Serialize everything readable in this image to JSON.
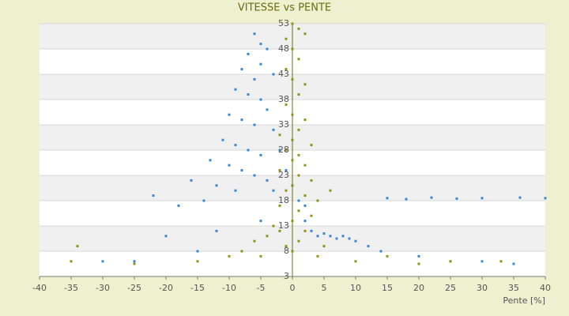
{
  "chart_data": {
    "type": "scatter",
    "title": "VITESSE vs PENTE",
    "x_label": "Pente [%]",
    "xlim": [
      -40,
      40
    ],
    "xticks": [
      -40,
      -35,
      -30,
      -25,
      -20,
      -15,
      -10,
      -5,
      0,
      5,
      10,
      15,
      20,
      25,
      30,
      35,
      40
    ],
    "ylim": [
      3,
      53
    ],
    "yticks": [
      3,
      8,
      13,
      18,
      23,
      28,
      33,
      38,
      43,
      48,
      53
    ],
    "grid": true,
    "series": [
      {
        "color": "#3a87d6",
        "x": [
          -6,
          -5,
          -7,
          -4,
          -5,
          -8,
          -6,
          -3,
          -9,
          -7,
          -5,
          -4,
          -10,
          -8,
          -6,
          -3,
          -11,
          -9,
          -7,
          -5,
          -2,
          -13,
          -10,
          -8,
          -6,
          -4,
          -1,
          -16,
          -12,
          -9,
          -3,
          0,
          -22,
          -18,
          -14,
          1,
          2,
          15,
          18,
          22,
          26,
          30,
          36,
          40,
          3,
          4,
          5,
          6,
          7,
          8,
          9,
          10,
          12,
          14,
          -20,
          -25,
          -30,
          -15,
          20,
          25,
          30,
          35,
          -12,
          -5,
          2
        ],
        "values": [
          51,
          49,
          47,
          48,
          45,
          44,
          42,
          43,
          40,
          39,
          38,
          36,
          35,
          34,
          33,
          32,
          30,
          29,
          28,
          27,
          28,
          26,
          25,
          24,
          23,
          22,
          24,
          22,
          21,
          20,
          20,
          21,
          19,
          17,
          18,
          18,
          17,
          18.5,
          18.3,
          18.6,
          18.4,
          18.5,
          18.6,
          18.5,
          12,
          11,
          11.5,
          11,
          10.5,
          11,
          10.5,
          10,
          9,
          8,
          11,
          6,
          6,
          8,
          7,
          6,
          6,
          5.5,
          12,
          14,
          14
        ]
      },
      {
        "color": "#8f9410",
        "x": [
          0,
          1,
          -1,
          2,
          0,
          1,
          -1,
          0,
          2,
          1,
          -1,
          0,
          2,
          1,
          -2,
          0,
          3,
          -1,
          1,
          0,
          2,
          -2,
          1,
          3,
          0,
          -1,
          2,
          4,
          -2,
          1,
          3,
          0,
          -3,
          2,
          -4,
          1,
          -1,
          5,
          -6,
          -8,
          -10,
          4,
          -2,
          0,
          -35,
          -25,
          -15,
          -5,
          10,
          15,
          20,
          25,
          33,
          -34,
          6
        ],
        "values": [
          53,
          52,
          50,
          51,
          48,
          46,
          44,
          42,
          41,
          39,
          37,
          35,
          34,
          32,
          31,
          30,
          29,
          28,
          27,
          26,
          25,
          24,
          23,
          22,
          21,
          20,
          19,
          18,
          17,
          16,
          15,
          14,
          13,
          12,
          11,
          10,
          9,
          9,
          10,
          8,
          7,
          7,
          12,
          8,
          6,
          5.5,
          6,
          7,
          6,
          7,
          5.5,
          6,
          6,
          9,
          20
        ]
      }
    ]
  }
}
